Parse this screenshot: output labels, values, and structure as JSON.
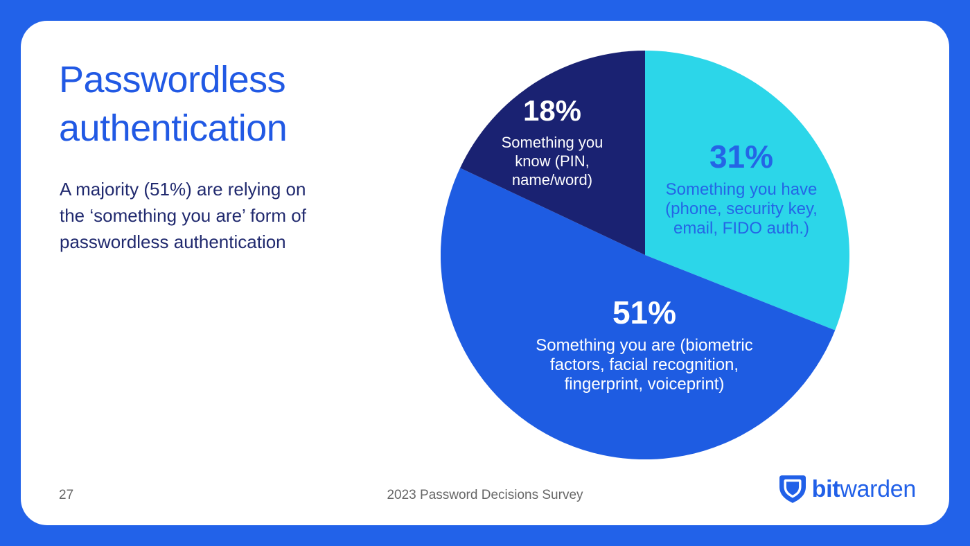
{
  "slide": {
    "frame_color": "#2262E9",
    "card_color": "#FFFFFF"
  },
  "left_panel": {
    "title": "Passwordless authentication",
    "title_color": "#2159E4",
    "subtitle_lines": [
      "A majority (51%) are relying on",
      "the ‘something you are’ form of",
      "passwordless authentication"
    ],
    "subtitle_color": "#20296E"
  },
  "chart_data": {
    "type": "pie",
    "title": "",
    "start_angle_deg": 0,
    "direction": "clockwise",
    "slices": [
      {
        "id": "have",
        "category": "Something you have (phone, security key, email, FIDO auth.)",
        "value_pct": 31,
        "value_label": "31%",
        "color": "#2CD6E9",
        "label_color": "#2465E6",
        "label_lines": [
          "Something you have",
          "(phone, security key,",
          "email, FIDO auth.)"
        ]
      },
      {
        "id": "are",
        "category": "Something you are (biometric factors, facial recognition, fingerprint, voiceprint)",
        "value_pct": 51,
        "value_label": "51%",
        "color": "#1E5CE2",
        "label_color": "#FFFFFF",
        "label_lines": [
          "Something you are (biometric",
          "factors, facial recognition,",
          "fingerprint, voiceprint)"
        ]
      },
      {
        "id": "know",
        "category": "Something you know (PIN, name/word)",
        "value_pct": 18,
        "value_label": "18%",
        "color": "#1A2272",
        "label_color": "#FFFFFF",
        "label_lines": [
          "Something you",
          "know (PIN,",
          "name/word)"
        ]
      }
    ]
  },
  "footer": {
    "page_number": "27",
    "caption": "2023 Password Decisions Survey",
    "logo": {
      "bold": "bit",
      "regular": "warden",
      "color": "#2160E8"
    }
  }
}
